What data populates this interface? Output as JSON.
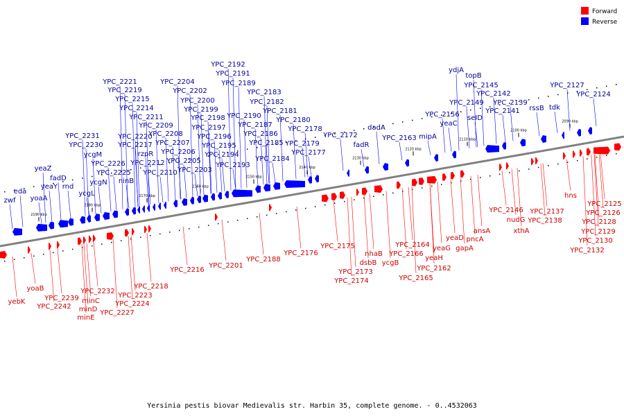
{
  "caption": "Yersinia pestis biovar Medievalis str. Harbin 35, complete genome. - 0..4532063",
  "legend": [
    {
      "label": "Forward",
      "color": "#ff0000"
    },
    {
      "label": "Reverse",
      "color": "#0000ff"
    }
  ],
  "colors": {
    "forward": "#ff0000",
    "reverse": "#0000ff",
    "axis": "#808080",
    "label_forward": "#cc0000",
    "label_reverse": "#000099"
  },
  "kbp_ticks": [
    "2090 kbp",
    "2100 kbp",
    "2110 kbp",
    "2120 kbp",
    "2130 kbp",
    "2140 kbp",
    "2150 kbp",
    "2160 kbp",
    "2170 kbp",
    "2180 kbp",
    "2190 kbp"
  ],
  "reverse_genes": [
    "zwf",
    "eda",
    "yoaA",
    "yeaZ",
    "yeaY",
    "fadD",
    "rnd",
    "YPC_2231",
    "YPC_2230",
    "ycgM",
    "ycgL",
    "ycgN",
    "YPC_2226",
    "YPC_2225",
    "YPC_2221",
    "YPC_2219",
    "YPC_2215",
    "YPC_2220",
    "YPC_2217",
    "YPC_2214",
    "YPC_2211",
    "ninB",
    "YPC_2209",
    "YPC_2212",
    "rzpR",
    "YPC_2208",
    "YPC_2207",
    "YPC_2210",
    "YPC_2206",
    "YPC_2204",
    "YPC_2202",
    "YPC_2205",
    "YPC_2200",
    "YPC_2199",
    "YPC_2203",
    "YPC_2198",
    "YPC_2197",
    "YPC_2196",
    "YPC_2195",
    "YPC_2194",
    "YPC_2193",
    "YPC_2192",
    "YPC_2191",
    "YPC_2189",
    "YPC_2190",
    "YPC_2187",
    "YPC_2183",
    "YPC_2182",
    "YPC_2186",
    "YPC_2185",
    "YPC_2181",
    "YPC_2180",
    "YPC_2184",
    "YPC_2178",
    "YPC_2179",
    "YPC_2177",
    "YPC_2172",
    "fadR",
    "dadA",
    "YPC_2163",
    "mipA",
    "YPC_2156",
    "yeaC",
    "ydjA",
    "topB",
    "YPC_2145",
    "YPC_2149",
    "YPC_2142",
    "seID",
    "YPC_2139",
    "YPC_2141",
    "rssB",
    "tdk",
    "YPC_2127",
    "YPC_2124"
  ],
  "forward_genes": [
    "yebK",
    "yoaB",
    "YPC_2239",
    "YPC_2242",
    "YPC_2232",
    "minC",
    "minD",
    "minE",
    "YPC_2227",
    "YPC_2223",
    "YPC_2224",
    "YPC_2218",
    "YPC_2216",
    "YPC_2201",
    "YPC_2188",
    "YPC_2176",
    "YPC_2175",
    "YPC_2173",
    "YPC_2174",
    "nhaB",
    "dsbB",
    "ycgB",
    "YPC_2164",
    "YPC_2166",
    "YPC_2165",
    "yeaH",
    "YPC_2162",
    "yeaG",
    "yeaD",
    "gapA",
    "pncA",
    "ansA",
    "YPC_2146",
    "nudG",
    "xthA",
    "YPC_2137",
    "YPC_2138",
    "hns",
    "YPC_2125",
    "YPC_2126",
    "YPC_2128",
    "YPC_2129",
    "YPC_2130",
    "YPC_2132"
  ]
}
